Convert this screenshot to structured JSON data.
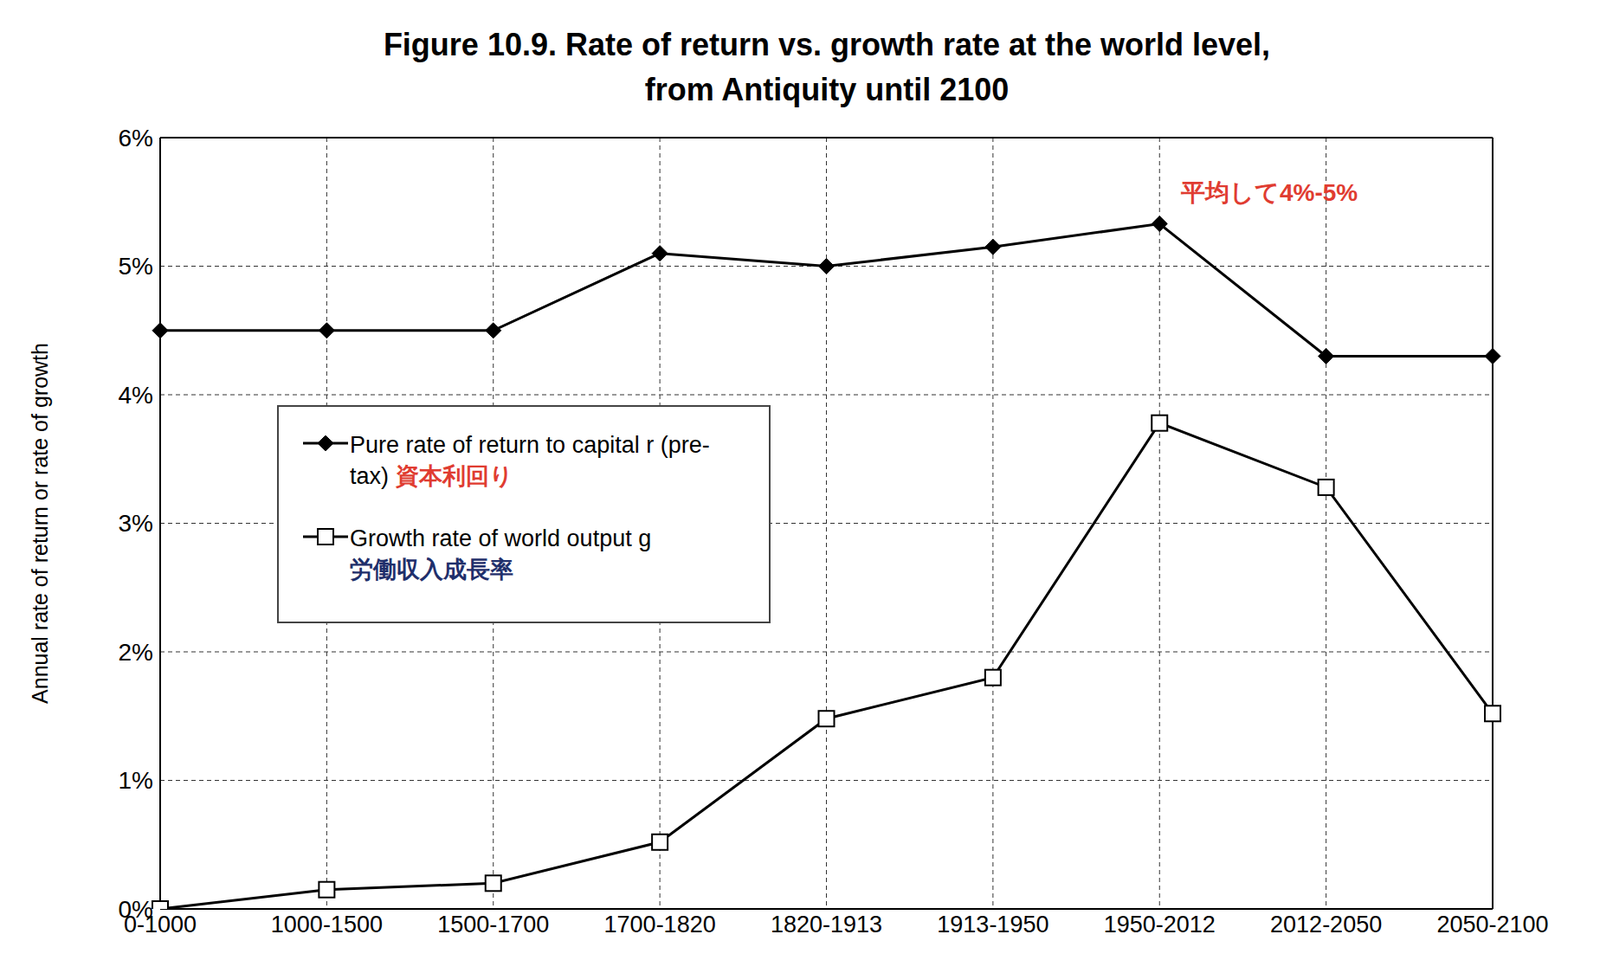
{
  "chart_data": {
    "type": "line",
    "title": "Figure 10.9. Rate of return vs. growth rate at the world level,\nfrom Antiquity until 2100",
    "y_label": "Annual rate of return or rate of growth",
    "categories": [
      "0-1000",
      "1000-1500",
      "1500-1700",
      "1700-1820",
      "1820-1913",
      "1913-1950",
      "1950-2012",
      "2012-2050",
      "2050-2100"
    ],
    "series": [
      {
        "name": "Pure rate of return to capital r (pre-tax)",
        "color": "#000000",
        "marker": "diamond",
        "values": [
          4.5,
          4.5,
          4.5,
          5.1,
          5.0,
          5.15,
          5.33,
          4.3,
          4.3
        ]
      },
      {
        "name": "Growth rate of world output g",
        "color": "#000000",
        "marker": "square",
        "values": [
          0.0,
          0.15,
          0.2,
          0.52,
          1.48,
          1.8,
          3.78,
          3.28,
          1.52
        ]
      }
    ],
    "ylim": [
      0,
      6
    ],
    "yticks": [
      {
        "value": 0,
        "label": "0%"
      },
      {
        "value": 1,
        "label": "1%"
      },
      {
        "value": 2,
        "label": "2%"
      },
      {
        "value": 3,
        "label": "3%"
      },
      {
        "value": 4,
        "label": "4%"
      },
      {
        "value": 5,
        "label": "5%"
      },
      {
        "value": 6,
        "label": "6%"
      }
    ],
    "grid": true,
    "legend": "left",
    "annotations": [
      {
        "text": "平均して4%-5%",
        "color": "#e03c31"
      },
      {
        "text": "資本利回り",
        "color": "#e03c31"
      },
      {
        "text": "労働収入成長率",
        "color": "#1f2f6b"
      }
    ]
  }
}
